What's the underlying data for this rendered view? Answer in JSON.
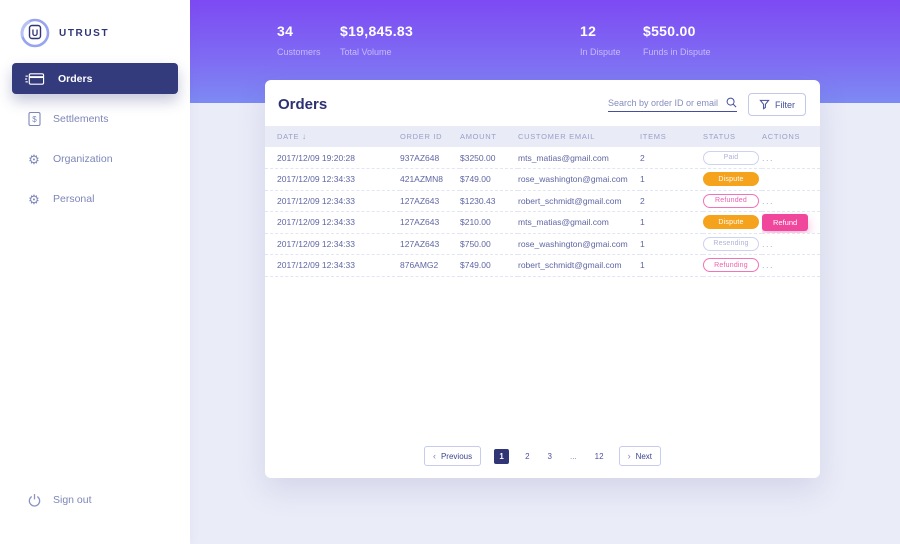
{
  "sidebar": {
    "brand": "UTRUST",
    "items": {
      "orders": "Orders",
      "settlements": "Settlements",
      "organization": "Organization",
      "personal": "Personal"
    },
    "signout": "Sign out"
  },
  "stats": [
    {
      "value": "34",
      "label": "Customers"
    },
    {
      "value": "$19,845.83",
      "label": "Total Volume"
    },
    {
      "value": "12",
      "label": "In Dispute"
    },
    {
      "value": "$550.00",
      "label": "Funds in Dispute"
    }
  ],
  "orders": {
    "title": "Orders",
    "search_placeholder": "Search by order ID or email",
    "filter_label": "Filter",
    "sort_icon": "↓",
    "dots": "...",
    "refund_label": "Refund",
    "columns": [
      "DATE",
      "ORDER ID",
      "AMOUNT",
      "CUSTOMER EMAIL",
      "ITEMS",
      "STATUS",
      "ACTIONS"
    ],
    "rows": [
      {
        "date": "2017/12/09 19:20:28",
        "order_id": "937AZ648",
        "amount": "$3250.00",
        "email": "mts_matias@gmail.com",
        "items": "2",
        "status": "Paid",
        "status_style": "neutral",
        "action": "dots"
      },
      {
        "date": "2017/12/09 12:34:33",
        "order_id": "421AZMN8",
        "amount": "$749.00",
        "email": "rose_washington@gmai.com",
        "items": "1",
        "status": "Dispute",
        "status_style": "orange",
        "action": "none"
      },
      {
        "date": "2017/12/09 12:34:33",
        "order_id": "127AZ643",
        "amount": "$1230.43",
        "email": "robert_schmidt@gmail.com",
        "items": "2",
        "status": "Refunded",
        "status_style": "pink",
        "action": "dots"
      },
      {
        "date": "2017/12/09 12:34:33",
        "order_id": "127AZ643",
        "amount": "$210.00",
        "email": "mts_matias@gmail.com",
        "items": "1",
        "status": "Dispute",
        "status_style": "orange",
        "action": "refund"
      },
      {
        "date": "2017/12/09 12:34:33",
        "order_id": "127AZ643",
        "amount": "$750.00",
        "email": "rose_washington@gmai.com",
        "items": "1",
        "status": "Resending",
        "status_style": "neutral",
        "action": "dots"
      },
      {
        "date": "2017/12/09 12:34:33",
        "order_id": "876AMG2",
        "amount": "$749.00",
        "email": "robert_schmidt@gmail.com",
        "items": "1",
        "status": "Refunding",
        "status_style": "pink",
        "action": "dots"
      }
    ],
    "pagination": {
      "prev_icon": "‹",
      "prev_label": "Previous",
      "next_icon": "›",
      "next_label": "Next",
      "pages": [
        {
          "label": "1",
          "active": true
        },
        {
          "label": "2"
        },
        {
          "label": "3"
        },
        {
          "label": "...",
          "ellipsis": true
        },
        {
          "label": "12"
        }
      ]
    }
  },
  "colors": {
    "banner_gradient_top": "#7d4af3",
    "banner_gradient_bottom": "#7e8af3",
    "navy_accent": "#343b7c",
    "status_orange": "#f5a31d",
    "action_pink": "#f0479d",
    "background": "#eaecf8"
  }
}
